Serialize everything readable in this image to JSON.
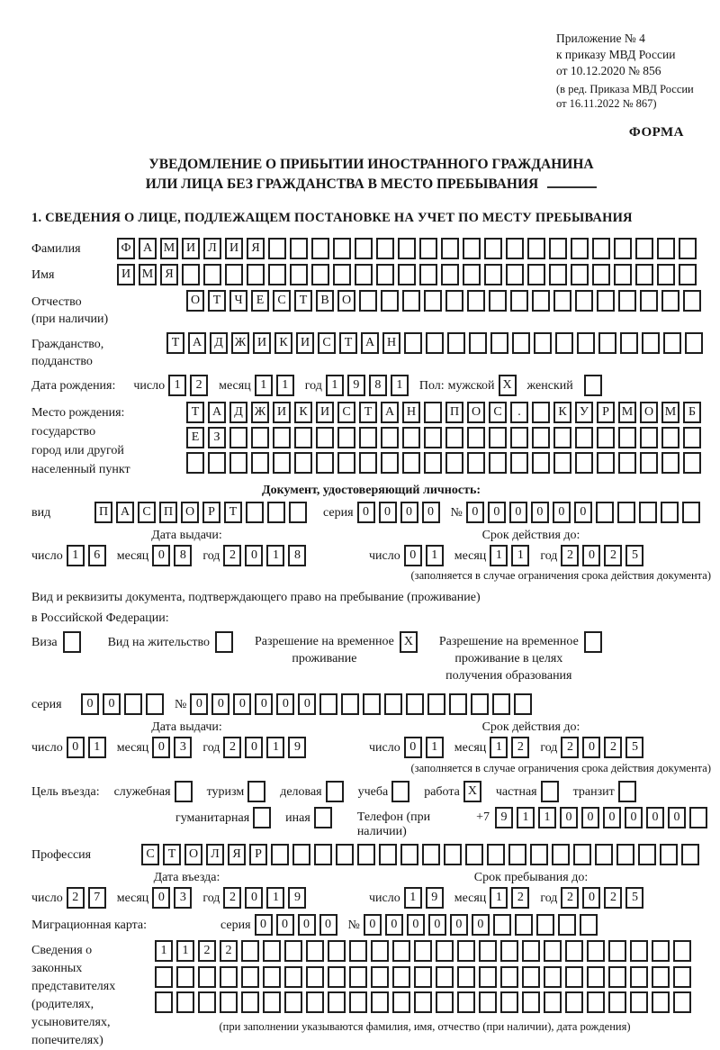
{
  "header": {
    "line1": "Приложение № 4",
    "line2": "к приказу МВД России",
    "line3": "от 10.12.2020 № 856",
    "line4": "(в ред. Приказа МВД России",
    "line5": "от 16.11.2022 № 867)",
    "form_label": "ФОРМА"
  },
  "title": {
    "line1": "УВЕДОМЛЕНИЕ О ПРИБЫТИИ ИНОСТРАННОГО ГРАЖДАНИНА",
    "line2": "ИЛИ ЛИЦА БЕЗ ГРАЖДАНСТВА В МЕСТО ПРЕБЫВАНИЯ"
  },
  "section1_heading": "1. СВЕДЕНИЯ О ЛИЦЕ, ПОДЛЕЖАЩЕМ ПОСТАНОВКЕ НА УЧЕТ ПО МЕСТУ ПРЕБЫВАНИЯ",
  "date_labels": {
    "day": "число",
    "month": "месяц",
    "year": "год"
  },
  "person": {
    "surname": {
      "label": "Фамилия",
      "value": "ФАМИЛИЯ",
      "boxes": 27
    },
    "given_name": {
      "label": "Имя",
      "value": "ИМЯ",
      "boxes": 27
    },
    "patronymic": {
      "label1": "Отчество",
      "label2": "(при наличии)",
      "value": "ОТЧЕСТВО",
      "boxes": 24
    },
    "citizenship": {
      "label1": "Гражданство,",
      "label2": "подданство",
      "value": "ТАДЖИКИСТАН",
      "boxes": 25
    },
    "birth_date": {
      "label": "Дата рождения:",
      "day": {
        "value": "12",
        "boxes": 2
      },
      "month": {
        "value": "11",
        "boxes": 2
      },
      "year": {
        "value": "1981",
        "boxes": 4
      }
    },
    "gender": {
      "label": "Пол:",
      "male_label": "мужской",
      "male": {
        "value": "X",
        "boxes": 1
      },
      "female_label": "женский",
      "female": {
        "value": "",
        "boxes": 1
      }
    },
    "birth_place": {
      "label1": "Место рождения:",
      "label2": "государство",
      "label3": "город или другой",
      "label4": "населенный пункт",
      "row1": {
        "value": "ТАДЖИКИСТАН ПОС. КУРМОМБ",
        "boxes": 24
      },
      "row2": {
        "value": "ЕЗ",
        "boxes": 24
      },
      "row3": {
        "value": "",
        "boxes": 24
      }
    }
  },
  "identity_doc": {
    "heading": "Документ, удостоверяющий личность:",
    "kind": {
      "label": "вид",
      "value": "ПАСПОРТ",
      "boxes": 10
    },
    "series": {
      "label": "серия",
      "value": "0000",
      "boxes": 4
    },
    "number": {
      "label": "№",
      "value": "000000",
      "boxes": 11
    },
    "issue": {
      "heading": "Дата выдачи:",
      "day": {
        "value": "16",
        "boxes": 2
      },
      "month": {
        "value": "08",
        "boxes": 2
      },
      "year": {
        "value": "2018",
        "boxes": 4
      }
    },
    "expiry": {
      "heading": "Срок действия до:",
      "day": {
        "value": "01",
        "boxes": 2
      },
      "month": {
        "value": "11",
        "boxes": 2
      },
      "year": {
        "value": "2025",
        "boxes": 4
      }
    },
    "note": "(заполняется в случае ограничения срока действия документа)"
  },
  "residence_doc": {
    "intro1": "Вид и реквизиты документа, подтверждающего право на пребывание (проживание)",
    "intro2": "в Российской Федерации:",
    "visa": {
      "label": "Виза",
      "box": {
        "value": "",
        "boxes": 1
      }
    },
    "residence_permit": {
      "label": "Вид на жительство",
      "box": {
        "value": "",
        "boxes": 1
      }
    },
    "temp_permit": {
      "label1": "Разрешение на временное",
      "label2": "проживание",
      "box": {
        "value": "X",
        "boxes": 1
      }
    },
    "edu_permit": {
      "label1": "Разрешение на временное",
      "label2": "проживание в целях",
      "label3": "получения образования",
      "box": {
        "value": "",
        "boxes": 1
      }
    },
    "series": {
      "label": "серия",
      "value": "00",
      "boxes": 4
    },
    "number": {
      "label": "№",
      "value": "000000",
      "boxes": 16
    },
    "issue": {
      "heading": "Дата выдачи:",
      "day": {
        "value": "01",
        "boxes": 2
      },
      "month": {
        "value": "03",
        "boxes": 2
      },
      "year": {
        "value": "2019",
        "boxes": 4
      }
    },
    "expiry": {
      "heading": "Срок действия до:",
      "day": {
        "value": "01",
        "boxes": 2
      },
      "month": {
        "value": "12",
        "boxes": 2
      },
      "year": {
        "value": "2025",
        "boxes": 4
      }
    },
    "note": "(заполняется в случае ограничения срока действия документа)"
  },
  "visit": {
    "purpose_label": "Цель въезда:",
    "options_row1": [
      {
        "label": "служебная",
        "box": {
          "value": "",
          "boxes": 1
        }
      },
      {
        "label": "туризм",
        "box": {
          "value": "",
          "boxes": 1
        }
      },
      {
        "label": "деловая",
        "box": {
          "value": "",
          "boxes": 1
        }
      },
      {
        "label": "учеба",
        "box": {
          "value": "",
          "boxes": 1
        }
      },
      {
        "label": "работа",
        "box": {
          "value": "X",
          "boxes": 1
        }
      },
      {
        "label": "частная",
        "box": {
          "value": "",
          "boxes": 1
        }
      },
      {
        "label": "транзит",
        "box": {
          "value": "",
          "boxes": 1
        }
      }
    ],
    "options_row2": [
      {
        "label": "гуманитарная",
        "box": {
          "value": "",
          "boxes": 1
        }
      },
      {
        "label": "иная",
        "box": {
          "value": "",
          "boxes": 1
        }
      }
    ],
    "phone": {
      "label": "Телефон (при наличии)",
      "prefix": "+7",
      "value": "911000000",
      "boxes": 10
    }
  },
  "profession": {
    "label": "Профессия",
    "value": "СТОЛЯР",
    "boxes": 26
  },
  "entry": {
    "issue": {
      "heading": "Дата въезда:",
      "day": {
        "value": "27",
        "boxes": 2
      },
      "month": {
        "value": "03",
        "boxes": 2
      },
      "year": {
        "value": "2019",
        "boxes": 4
      }
    },
    "expiry": {
      "heading": "Срок пребывания до:",
      "day": {
        "value": "19",
        "boxes": 2
      },
      "month": {
        "value": "12",
        "boxes": 2
      },
      "year": {
        "value": "2025",
        "boxes": 4
      }
    }
  },
  "migration_card": {
    "label": "Миграционная карта:",
    "series": {
      "label": "серия",
      "value": "0000",
      "boxes": 4
    },
    "number": {
      "label": "№",
      "value": "000000",
      "boxes": 11
    }
  },
  "legal_reps": {
    "label_lines": [
      "Сведения о",
      "законных",
      "представителях",
      "(родителях,",
      "усыновителях,",
      "попечителях)"
    ],
    "row1": {
      "value": "1122",
      "boxes": 25
    },
    "row2": {
      "value": "",
      "boxes": 25
    },
    "row3": {
      "value": "",
      "boxes": 25
    },
    "footnote": "(при заполнении указываются фамилия, имя, отчество (при наличии), дата рождения)"
  }
}
